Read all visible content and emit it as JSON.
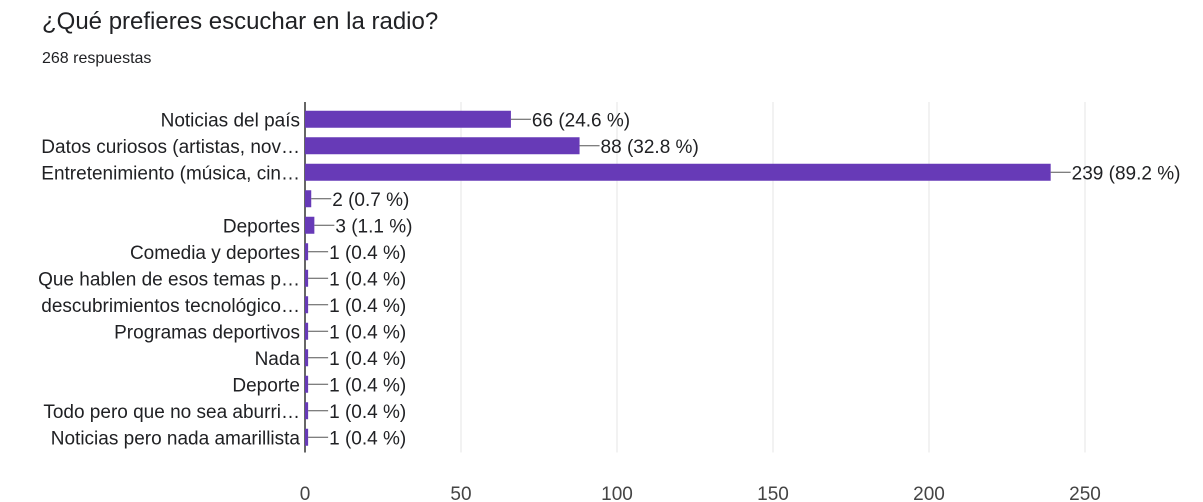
{
  "header": {
    "title": "¿Qué prefieres escuchar en la radio?",
    "responses": "268 respuestas"
  },
  "chart_data": {
    "type": "bar",
    "orientation": "horizontal",
    "bar_color": "#673ab7",
    "categories": [
      "Noticias del país",
      "Datos curiosos (artistas, nov…",
      "Entretenimiento (música, cin…",
      "",
      "Deportes",
      "Comedia y deportes",
      "Que hablen de esos temas p…",
      "descubrimientos tecnológico…",
      "Programas deportivos",
      "Nada",
      "Deporte",
      "Todo pero que no sea aburri…",
      "Noticias pero nada amarillista"
    ],
    "values": [
      66,
      88,
      239,
      2,
      3,
      1,
      1,
      1,
      1,
      1,
      1,
      1,
      1
    ],
    "value_labels": [
      "66 (24.6 %)",
      "88 (32.8 %)",
      "239 (89.2 %)",
      "2 (0.7 %)",
      "3 (1.1 %)",
      "1 (0.4 %)",
      "1 (0.4 %)",
      "1 (0.4 %)",
      "1 (0.4 %)",
      "1 (0.4 %)",
      "1 (0.4 %)",
      "1 (0.4 %)",
      "1 (0.4 %)"
    ],
    "xlim": [
      0,
      250
    ],
    "xticks": [
      "0",
      "50",
      "100",
      "150",
      "200",
      "250"
    ],
    "grid": true
  }
}
